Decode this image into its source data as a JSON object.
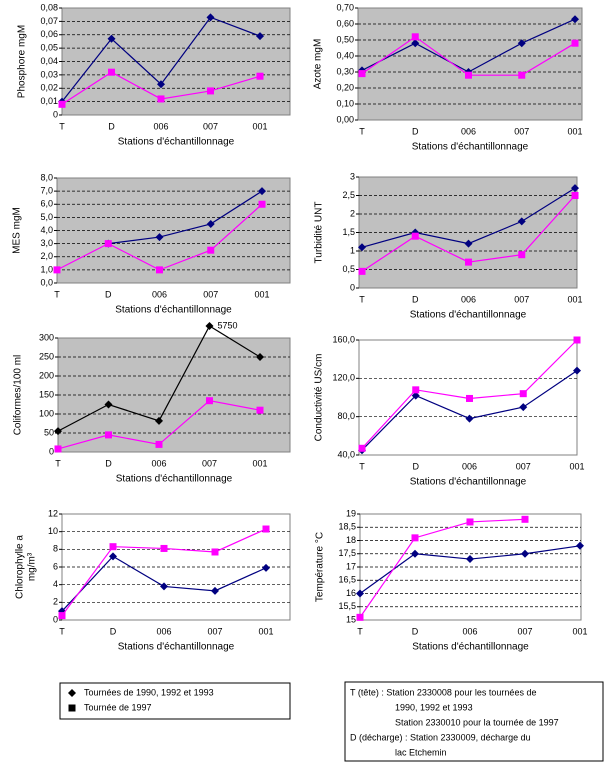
{
  "chart_data": [
    {
      "type": "line",
      "y_label": "Phosphore mgM",
      "x_label": "Stations d'échantillonnage",
      "categories": [
        "T",
        "D",
        "006",
        "007",
        "001"
      ],
      "plot_background": "#c0c0c0",
      "grid": true,
      "ylim": [
        0,
        0.08
      ],
      "yticks": [
        0,
        {
          "value": 0.01,
          "label": "0,01"
        },
        {
          "value": 0.02,
          "label": "0,02"
        },
        {
          "value": 0.03,
          "label": "0,03"
        },
        {
          "value": 0.04,
          "label": "0,04"
        },
        {
          "value": 0.05,
          "label": "0,05"
        },
        {
          "value": 0.06,
          "label": "0,06"
        },
        {
          "value": 0.07,
          "label": "0,07"
        },
        {
          "value": 0.08,
          "label": "0,08"
        }
      ],
      "series": [
        {
          "color": "#000080",
          "marker": "diamond",
          "values": [
            0.01,
            0.057,
            0.023,
            0.073,
            0.059
          ]
        },
        {
          "color": "#ff00ff",
          "marker": "square",
          "values": [
            0.008,
            0.032,
            0.012,
            0.018,
            0.029
          ]
        }
      ]
    },
    {
      "type": "line",
      "y_label": "Azote mgM",
      "x_label": "Stations d'échantillonnage",
      "categories": [
        "T",
        "D",
        "006",
        "007",
        "001"
      ],
      "plot_background": "#c0c0c0",
      "grid": true,
      "ylim": [
        0,
        0.7
      ],
      "yticks": [
        {
          "value": 0,
          "label": "0,00"
        },
        {
          "value": 0.1,
          "label": "0,10"
        },
        {
          "value": 0.2,
          "label": "0,20"
        },
        {
          "value": 0.3,
          "label": "0,30"
        },
        {
          "value": 0.4,
          "label": "0,40"
        },
        {
          "value": 0.5,
          "label": "0,50"
        },
        {
          "value": 0.6,
          "label": "0,60"
        },
        {
          "value": 0.7,
          "label": "0,70"
        }
      ],
      "series": [
        {
          "color": "#000080",
          "marker": "diamond",
          "values": [
            0.31,
            0.48,
            0.3,
            0.48,
            0.63
          ]
        },
        {
          "color": "#ff00ff",
          "marker": "square",
          "values": [
            0.29,
            0.52,
            0.28,
            0.28,
            0.48
          ]
        }
      ]
    },
    {
      "type": "line",
      "y_label": "MES mgM",
      "x_label": "Stations d'échantillonnage",
      "categories": [
        "T",
        "D",
        "006",
        "007",
        "001"
      ],
      "plot_background": "#c0c0c0",
      "grid": true,
      "ylim": [
        0,
        8
      ],
      "yticks": [
        {
          "value": 0,
          "label": "0,0"
        },
        {
          "value": 1,
          "label": "1,0"
        },
        {
          "value": 2,
          "label": "2,0"
        },
        {
          "value": 3,
          "label": "3,0"
        },
        {
          "value": 4,
          "label": "4,0"
        },
        {
          "value": 5,
          "label": "5,0"
        },
        {
          "value": 6,
          "label": "6,0"
        },
        {
          "value": 7,
          "label": "7,0"
        },
        {
          "value": 8,
          "label": "8,0"
        }
      ],
      "series": [
        {
          "color": "#000080",
          "marker": "diamond",
          "values": [
            null,
            3.0,
            3.5,
            4.5,
            7.0
          ]
        },
        {
          "color": "#ff00ff",
          "marker": "square",
          "values": [
            1.0,
            3.0,
            1.0,
            2.5,
            6.0
          ]
        }
      ]
    },
    {
      "type": "line",
      "y_label": "Turbidité UNT",
      "x_label": "Stations d'échantillonnage",
      "categories": [
        "T",
        "D",
        "006",
        "007",
        "001"
      ],
      "plot_background": "#c0c0c0",
      "grid": true,
      "ylim": [
        0,
        3
      ],
      "yticks": [
        0,
        {
          "value": 0.5,
          "label": "0,5"
        },
        1,
        {
          "value": 1.5,
          "label": "1,5"
        },
        2,
        {
          "value": 2.5,
          "label": "2,5"
        },
        3
      ],
      "series": [
        {
          "color": "#000080",
          "marker": "diamond",
          "values": [
            1.1,
            1.5,
            1.2,
            1.8,
            2.7
          ]
        },
        {
          "color": "#ff00ff",
          "marker": "square",
          "values": [
            0.45,
            1.4,
            0.7,
            0.9,
            2.5
          ]
        }
      ]
    },
    {
      "type": "line",
      "y_label": "Coliformes/100 ml",
      "x_label": "Stations d'échantillonnage",
      "categories": [
        "T",
        "D",
        "006",
        "007",
        "001"
      ],
      "plot_background": "#c0c0c0",
      "grid": true,
      "ylim": [
        0,
        300
      ],
      "yticks": [
        0,
        50,
        100,
        150,
        200,
        250,
        300
      ],
      "series": [
        {
          "color": "#000000",
          "marker": "diamond",
          "values": [
            55,
            125,
            82,
            5750,
            250
          ],
          "value_labels": [
            null,
            null,
            null,
            "5750",
            null
          ]
        },
        {
          "color": "#ff00ff",
          "marker": "square",
          "values": [
            8,
            45,
            20,
            135,
            110
          ]
        }
      ]
    },
    {
      "type": "line",
      "y_label": "Conductivité US/cm",
      "x_label": "Stations d'échantillonnage",
      "categories": [
        "T",
        "D",
        "006",
        "007",
        "001"
      ],
      "plot_background": "#ffffff",
      "grid": true,
      "ylim": [
        40,
        160
      ],
      "yticks": [
        {
          "value": 40,
          "label": "40,0"
        },
        {
          "value": 80,
          "label": "80,0"
        },
        {
          "value": 120,
          "label": "120,0"
        },
        {
          "value": 160,
          "label": "160,0"
        }
      ],
      "series": [
        {
          "color": "#000080",
          "marker": "diamond",
          "values": [
            45,
            102,
            78,
            90,
            128
          ]
        },
        {
          "color": "#ff00ff",
          "marker": "square",
          "values": [
            47,
            108,
            99,
            104,
            160
          ]
        }
      ]
    },
    {
      "type": "line",
      "y_label": "Chlorophylle a",
      "y_label_2": "mg/m³",
      "x_label": "Stations d'échantillonnage",
      "categories": [
        "T",
        "D",
        "006",
        "007",
        "001"
      ],
      "plot_background": "#ffffff",
      "grid": true,
      "ylim": [
        0,
        12
      ],
      "yticks": [
        0,
        2,
        4,
        6,
        8,
        10,
        12
      ],
      "series": [
        {
          "color": "#000080",
          "marker": "diamond",
          "values": [
            1.0,
            7.2,
            3.8,
            3.3,
            5.9
          ]
        },
        {
          "color": "#ff00ff",
          "marker": "square",
          "values": [
            0.5,
            8.3,
            8.1,
            7.7,
            10.3
          ]
        }
      ]
    },
    {
      "type": "line",
      "y_label": "Température °C",
      "x_label": "Stations d'échantillonnage",
      "categories": [
        "T",
        "D",
        "006",
        "007",
        "001"
      ],
      "plot_background": "#ffffff",
      "grid": true,
      "ylim": [
        15,
        19
      ],
      "yticks": [
        15,
        {
          "value": 15.5,
          "label": "15,5"
        },
        16,
        {
          "value": 16.5,
          "label": "16,5"
        },
        17,
        {
          "value": 17.5,
          "label": "17,5"
        },
        18,
        {
          "value": 18.5,
          "label": "18,5"
        },
        19
      ],
      "series": [
        {
          "color": "#000080",
          "marker": "diamond",
          "values": [
            16.0,
            17.5,
            17.3,
            17.5,
            17.8
          ]
        },
        {
          "color": "#ff00ff",
          "marker": "square",
          "values": [
            15.1,
            18.1,
            18.7,
            18.8,
            null
          ]
        }
      ]
    }
  ],
  "legend": {
    "items": [
      {
        "marker": "diamond",
        "label": "Tournées de 1990, 1992 et 1993"
      },
      {
        "marker": "square",
        "label": "Tournée de 1997"
      }
    ]
  },
  "note": {
    "lines": [
      "T (tête) : Station 2330008 pour les tournées de",
      "1990, 1992 et 1993",
      "Station 2330010 pour la tournée de 1997",
      "D (décharge) : Station 2330009, décharge du",
      "lac Etchemin"
    ]
  }
}
